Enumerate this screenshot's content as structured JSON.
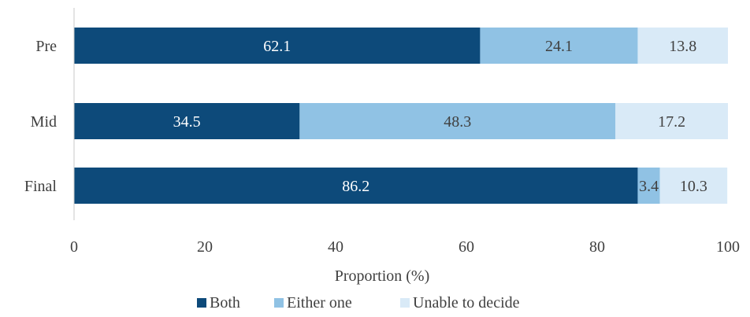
{
  "colors": {
    "Both": "#0d4a7a",
    "Either one": "#90c2e4",
    "Unable to decide": "#d9eaf7",
    "axis": "#c8c8c8",
    "text": "#404040"
  },
  "chart_data": {
    "type": "bar",
    "orientation": "horizontal",
    "stacked": true,
    "categories": [
      "Pre",
      "Mid",
      "Final"
    ],
    "series": [
      {
        "name": "Both",
        "values": [
          62.1,
          34.5,
          86.2
        ]
      },
      {
        "name": "Either one",
        "values": [
          24.1,
          48.3,
          3.4
        ]
      },
      {
        "name": "Unable to decide",
        "values": [
          13.8,
          17.2,
          10.3
        ]
      }
    ],
    "xlabel": "Proportion (%)",
    "ylabel": "",
    "xlim": [
      0,
      100
    ],
    "xticks": [
      0,
      20,
      40,
      60,
      80,
      100
    ],
    "grid": false,
    "legend": "bottom",
    "data_labels": true
  }
}
